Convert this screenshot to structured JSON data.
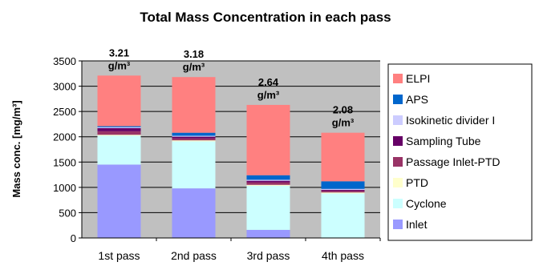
{
  "chart_data": {
    "type": "bar",
    "stacked": true,
    "title": "Total Mass Concentration in each pass",
    "ylabel": "Mass conc. [mg/m³]",
    "xlabel": "",
    "ylim": [
      0,
      3500
    ],
    "yticks": [
      0,
      500,
      1000,
      1500,
      2000,
      2500,
      3000,
      3500
    ],
    "grid": true,
    "legend_position": "right",
    "categories": [
      "1st pass",
      "2nd pass",
      "3rd pass",
      "4th pass"
    ],
    "data_labels": [
      [
        "3.21",
        "g/m³"
      ],
      [
        "3.18",
        "g/m³"
      ],
      [
        "2.64",
        "g/m³"
      ],
      [
        "2.08",
        "g/m³"
      ]
    ],
    "series": [
      {
        "name": "Inlet",
        "color": "#9999ff",
        "values": [
          1450,
          980,
          160,
          0
        ]
      },
      {
        "name": "Cyclone",
        "color": "#ccffff",
        "values": [
          570,
          930,
          870,
          880
        ]
      },
      {
        "name": "PTD",
        "color": "#ffffcc",
        "values": [
          20,
          20,
          20,
          20
        ]
      },
      {
        "name": "Passage Inlet-PTD",
        "color": "#993366",
        "values": [
          70,
          40,
          50,
          30
        ]
      },
      {
        "name": "Sampling Tube",
        "color": "#660066",
        "values": [
          60,
          30,
          30,
          20
        ]
      },
      {
        "name": "Isokinetic divider I",
        "color": "#ccccff",
        "values": [
          20,
          20,
          20,
          20
        ]
      },
      {
        "name": "APS",
        "color": "#0066cc",
        "values": [
          20,
          60,
          90,
          150
        ]
      },
      {
        "name": "ELPI",
        "color": "#ff8080",
        "values": [
          1000,
          1100,
          1390,
          960
        ]
      }
    ]
  }
}
